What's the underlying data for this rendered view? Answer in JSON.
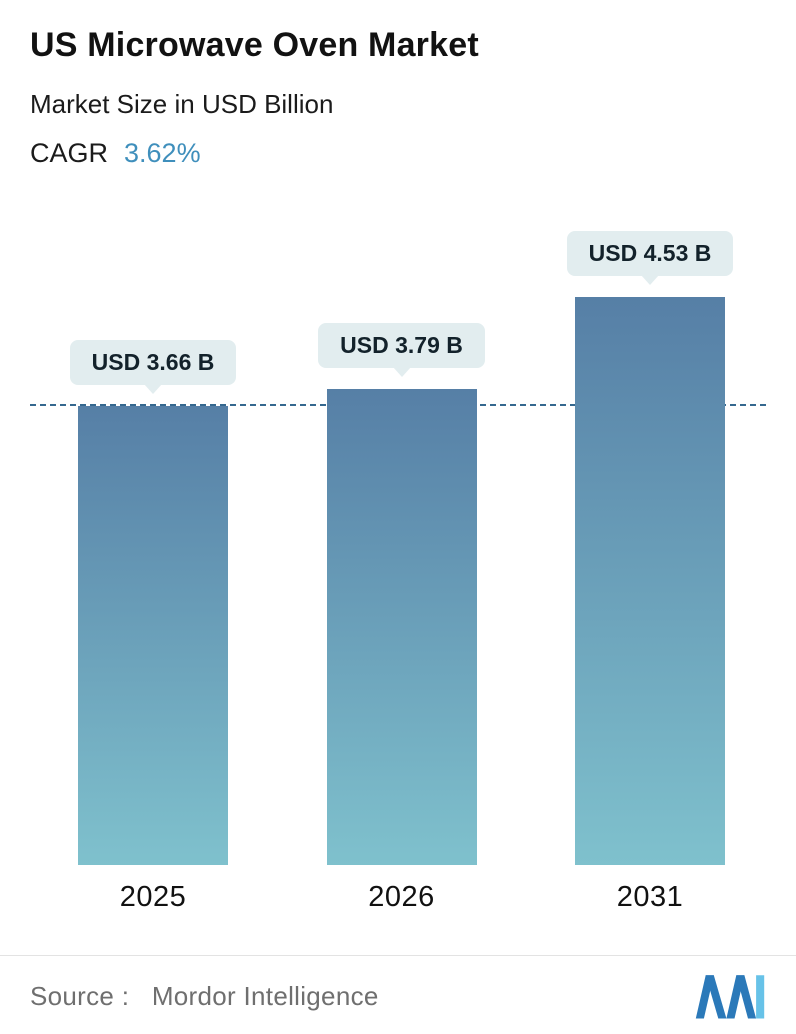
{
  "header": {
    "title": "US Microwave Oven Market",
    "subtitle": "Market Size in USD Billion",
    "cagr_label": "CAGR",
    "cagr_value": "3.62%"
  },
  "chart_data": {
    "type": "bar",
    "categories": [
      "2025",
      "2026",
      "2031"
    ],
    "values": [
      3.66,
      3.79,
      4.53
    ],
    "value_labels": [
      "USD 3.66 B",
      "USD 3.79 B",
      "USD 4.53 B"
    ],
    "title": "US Microwave Oven Market",
    "ylabel": "Market Size in USD Billion",
    "ylim": [
      0,
      5.1
    ],
    "reference_line_value": 3.66,
    "grid": false,
    "legend": false,
    "bar_gradient_top": "#567fa6",
    "bar_gradient_bottom": "#7fc1cd",
    "dashed_line_color": "#35688f",
    "label_pill_color": "#e2edef"
  },
  "footer": {
    "source_label": "Source :",
    "source_value": "Mordor Intelligence",
    "logo_name": "mordor-intelligence-logo",
    "logo_color_dark": "#2b79b9",
    "logo_color_light": "#67c2e8"
  }
}
